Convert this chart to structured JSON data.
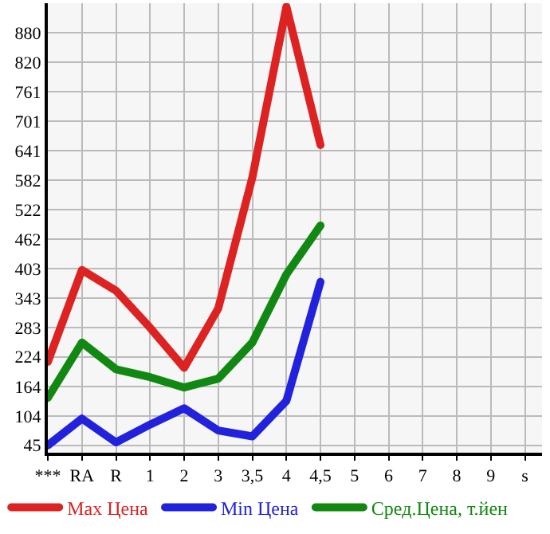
{
  "chart_data": {
    "type": "line",
    "categories": [
      "***",
      "RA",
      "R",
      "1",
      "2",
      "3",
      "3,5",
      "4",
      "4,5",
      "5",
      "6",
      "7",
      "8",
      "9",
      "s"
    ],
    "series": [
      {
        "name": "Max Цена",
        "color": "#dd2222",
        "values": [
          214,
          400,
          358,
          283,
          202,
          322,
          587,
          933,
          653,
          null,
          null,
          null,
          null,
          null,
          null
        ]
      },
      {
        "name": "Min Цена",
        "color": "#2222dd",
        "values": [
          45,
          99,
          51,
          87,
          120,
          75,
          63,
          135,
          376,
          null,
          null,
          null,
          null,
          null,
          null
        ]
      },
      {
        "name": "Сред.Цена, т.йен",
        "color": "#118811",
        "values": [
          141,
          253,
          199,
          183,
          162,
          180,
          253,
          391,
          490,
          null,
          null,
          null,
          null,
          null,
          null
        ]
      }
    ],
    "ylim": [
      30,
      940
    ],
    "yticks": [
      45,
      104,
      164,
      224,
      283,
      343,
      403,
      462,
      522,
      582,
      641,
      701,
      761,
      820,
      880
    ],
    "grid": true,
    "legend": "bottom",
    "marker": "none",
    "line_style": "solid"
  }
}
